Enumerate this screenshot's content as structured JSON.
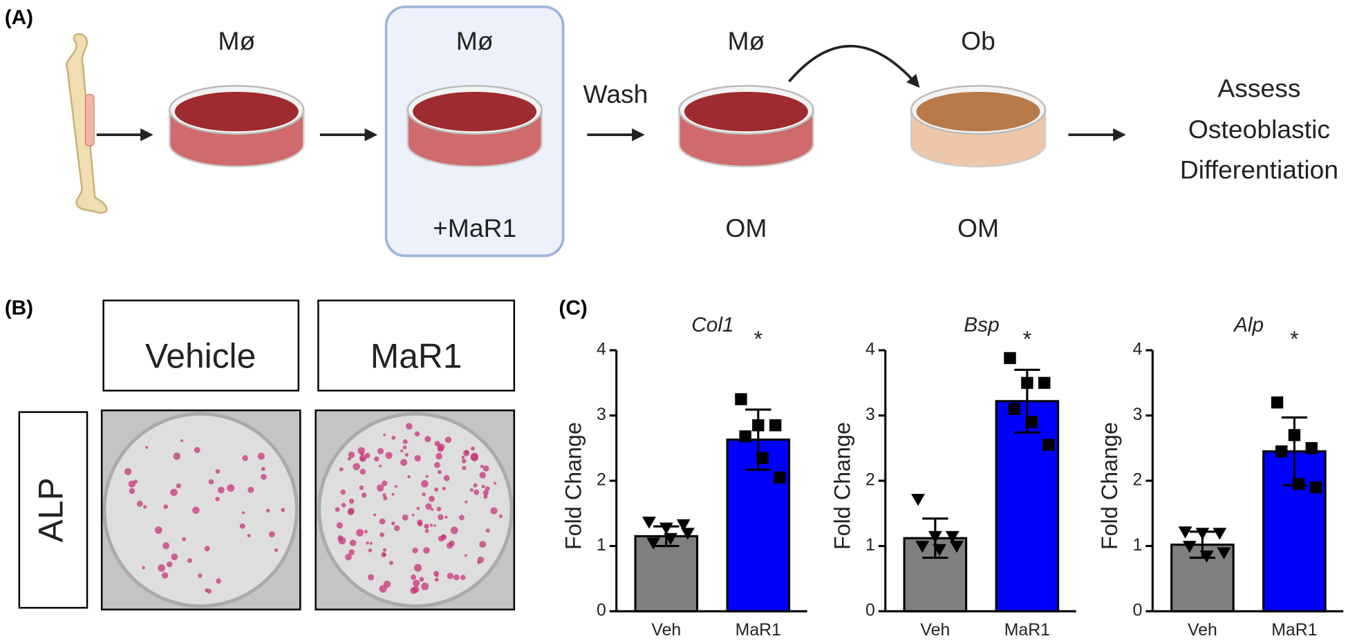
{
  "panel_a": {
    "label": "(A)",
    "dish1_top": "Mø",
    "dish2_top": "Mø",
    "dish2_bottom": "+MaR1",
    "wash": "Wash",
    "dish3_top": "Mø",
    "dish3_bottom": "OM",
    "dish4_top": "Ob",
    "dish4_bottom": "OM",
    "assess_text": [
      "Assess",
      "Osteoblastic",
      "Differentiation"
    ]
  },
  "panel_b": {
    "label": "(B)",
    "col1": "Vehicle",
    "col2": "MaR1",
    "row": "ALP"
  },
  "panel_c": {
    "label": "(C)"
  },
  "chart_data": [
    {
      "type": "bar",
      "title": "Col1",
      "annotation": "*",
      "ylabel": "Fold Change",
      "categories": [
        "Veh",
        "MaR1"
      ],
      "values": [
        1.15,
        2.63
      ],
      "errors": [
        0.15,
        0.46
      ],
      "points": [
        [
          1.37,
          1.28,
          1.33,
          1.05,
          1.12,
          1.2
        ],
        [
          3.25,
          2.85,
          2.85,
          2.68,
          2.35,
          2.05
        ]
      ],
      "colors": [
        "#808080",
        "#0000ff"
      ],
      "markers": [
        "triangle",
        "square"
      ],
      "ylim": [
        0,
        4
      ],
      "yticks": [
        0,
        1,
        2,
        3,
        4
      ]
    },
    {
      "type": "bar",
      "title": "Bsp",
      "annotation": "*",
      "ylabel": "Fold Change",
      "categories": [
        "Veh",
        "MaR1"
      ],
      "values": [
        1.12,
        3.22
      ],
      "errors": [
        0.3,
        0.48
      ],
      "points": [
        [
          1.72,
          1.15,
          1.15,
          1.0,
          0.95,
          1.0
        ],
        [
          3.88,
          3.5,
          3.5,
          3.1,
          2.9,
          2.55
        ]
      ],
      "colors": [
        "#808080",
        "#0000ff"
      ],
      "markers": [
        "triangle",
        "square"
      ],
      "ylim": [
        0,
        4
      ],
      "yticks": [
        0,
        1,
        2,
        3,
        4
      ]
    },
    {
      "type": "bar",
      "title": "Alp",
      "annotation": "*",
      "ylabel": "Fold Change",
      "categories": [
        "Veh",
        "MaR1"
      ],
      "values": [
        1.02,
        2.45
      ],
      "errors": [
        0.2,
        0.52
      ],
      "points": [
        [
          1.22,
          1.2,
          1.2,
          1.0,
          0.85,
          0.9
        ],
        [
          3.2,
          2.7,
          2.5,
          2.45,
          1.95,
          1.9
        ]
      ],
      "colors": [
        "#808080",
        "#0000ff"
      ],
      "markers": [
        "triangle",
        "square"
      ],
      "ylim": [
        0,
        4
      ],
      "yticks": [
        0,
        1,
        2,
        3,
        4
      ]
    }
  ]
}
